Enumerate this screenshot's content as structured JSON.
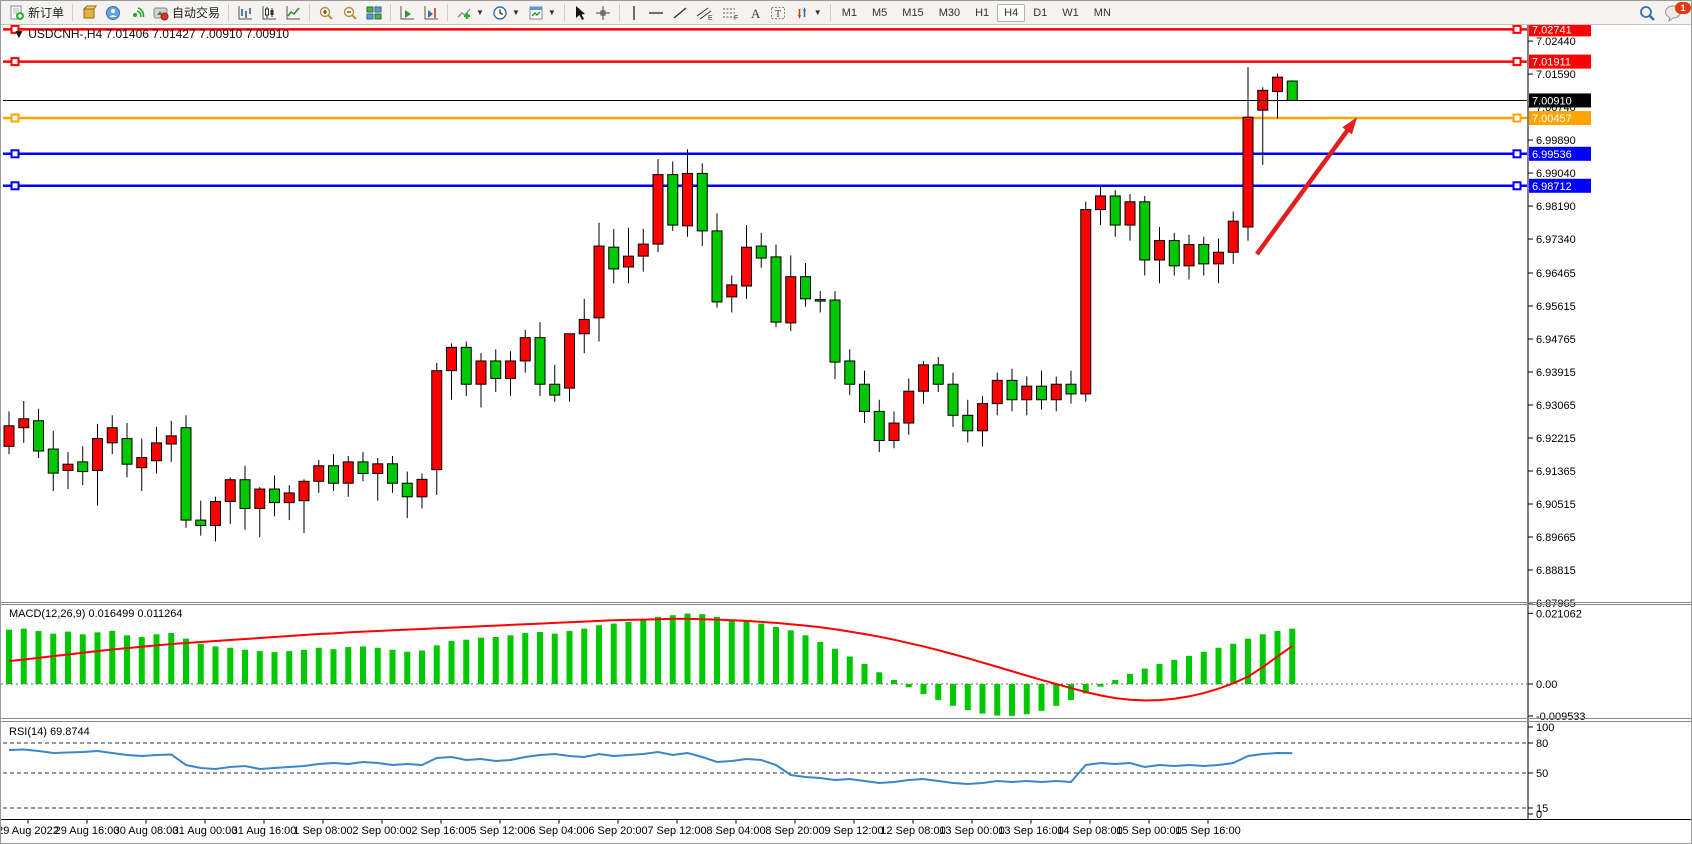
{
  "toolbar": {
    "new_order_label": "新订单",
    "autotrading_label": "自动交易",
    "timeframes": [
      "M1",
      "M5",
      "M15",
      "M30",
      "H1",
      "H4",
      "D1",
      "W1",
      "MN"
    ],
    "active_timeframe": "H4",
    "notification_count": "1"
  },
  "chart": {
    "title_marker": "▼",
    "symbol_period": "USDCNH-,H4",
    "ohlc_text": "7.01406 7.01427 7.00910 7.00910"
  },
  "chart_data": {
    "type": "candlestick",
    "symbol": "USDCNH-",
    "period": "H4",
    "current_bar": {
      "open": "7.01406",
      "high": "7.01427",
      "low": "7.00910",
      "close": "7.00910"
    },
    "colors": {
      "bull": "#FF0000",
      "bear": "#00C800",
      "wick": "#000000",
      "background": "#FFFFFF"
    },
    "candles": [
      [
        6.92,
        6.929,
        6.918,
        6.9253
      ],
      [
        6.9248,
        6.9317,
        6.9209,
        6.9271
      ],
      [
        6.9266,
        6.9297,
        6.917,
        6.9188
      ],
      [
        6.9193,
        6.924,
        6.9085,
        6.9131
      ],
      [
        6.9138,
        6.9185,
        6.909,
        6.9154
      ],
      [
        6.916,
        6.92,
        6.91,
        6.9135
      ],
      [
        6.9138,
        6.9258,
        6.9047,
        6.922
      ],
      [
        6.9209,
        6.928,
        6.918,
        6.9248
      ],
      [
        6.922,
        6.926,
        6.912,
        6.9154
      ],
      [
        6.9145,
        6.922,
        6.9085,
        6.9171
      ],
      [
        6.9163,
        6.925,
        6.913,
        6.9209
      ],
      [
        6.9206,
        6.9266,
        6.916,
        6.9227
      ],
      [
        6.9248,
        6.928,
        6.899,
        6.901
      ],
      [
        6.901,
        6.906,
        6.897,
        6.8996
      ],
      [
        6.8996,
        6.907,
        6.8955,
        6.9058
      ],
      [
        6.9058,
        6.912,
        6.9,
        6.9114
      ],
      [
        6.9114,
        6.915,
        6.8985,
        6.904
      ],
      [
        6.904,
        6.9095,
        6.8966,
        6.909
      ],
      [
        6.909,
        6.9125,
        6.902,
        6.9055
      ],
      [
        6.9055,
        6.91,
        6.901,
        6.908
      ],
      [
        6.906,
        6.9115,
        6.8976,
        6.911
      ],
      [
        6.911,
        6.9165,
        6.908,
        6.915
      ],
      [
        6.915,
        6.918,
        6.9085,
        6.9105
      ],
      [
        6.9105,
        6.9175,
        6.907,
        6.916
      ],
      [
        6.916,
        6.9185,
        6.911,
        6.913
      ],
      [
        6.913,
        6.917,
        6.906,
        6.9155
      ],
      [
        6.9155,
        6.9175,
        6.908,
        6.9105
      ],
      [
        6.9105,
        6.9135,
        6.9015,
        6.907
      ],
      [
        6.907,
        6.913,
        6.904,
        6.9115
      ],
      [
        6.914,
        6.9415,
        6.9075,
        6.9395
      ],
      [
        6.9395,
        6.9465,
        6.932,
        6.9455
      ],
      [
        6.9455,
        6.947,
        6.933,
        6.936
      ],
      [
        6.936,
        6.944,
        6.93,
        6.942
      ],
      [
        6.942,
        6.945,
        6.934,
        6.9375
      ],
      [
        6.9375,
        6.9445,
        6.933,
        6.942
      ],
      [
        6.942,
        6.95,
        6.939,
        6.948
      ],
      [
        6.948,
        6.952,
        6.933,
        6.936
      ],
      [
        6.936,
        6.941,
        6.9315,
        6.9332
      ],
      [
        6.935,
        6.949,
        6.9315,
        6.949
      ],
      [
        6.949,
        6.958,
        6.944,
        6.9527
      ],
      [
        6.9531,
        6.9776,
        6.947,
        6.9716
      ],
      [
        6.9713,
        6.976,
        6.962,
        6.9657
      ],
      [
        6.9662,
        6.9763,
        6.962,
        6.969
      ],
      [
        6.969,
        6.976,
        6.965,
        6.9721
      ],
      [
        6.9721,
        6.994,
        6.97,
        6.99
      ],
      [
        6.99,
        6.9934,
        6.9755,
        6.977
      ],
      [
        6.9768,
        6.9965,
        6.974,
        6.9903
      ],
      [
        6.9903,
        6.9929,
        6.9716,
        6.9755
      ],
      [
        6.9755,
        6.98,
        6.9557,
        6.9572
      ],
      [
        6.9585,
        6.964,
        6.9545,
        6.9616
      ],
      [
        6.9613,
        6.977,
        6.958,
        6.9713
      ],
      [
        6.9716,
        6.975,
        6.966,
        6.9685
      ],
      [
        6.9688,
        6.972,
        6.9507,
        6.952
      ],
      [
        6.9518,
        6.9692,
        6.9497,
        6.9637
      ],
      [
        6.9637,
        6.9672,
        6.956,
        6.958
      ],
      [
        6.9578,
        6.96,
        6.9545,
        6.9577
      ],
      [
        6.9577,
        6.96,
        6.9373,
        6.9417
      ],
      [
        6.942,
        6.945,
        6.9332,
        6.936
      ],
      [
        6.936,
        6.9395,
        6.926,
        6.929
      ],
      [
        6.929,
        6.932,
        6.9185,
        6.9215
      ],
      [
        6.9215,
        6.929,
        6.9195,
        6.926
      ],
      [
        6.926,
        6.9375,
        6.923,
        6.9342
      ],
      [
        6.9342,
        6.942,
        6.931,
        6.941
      ],
      [
        6.941,
        6.943,
        6.934,
        6.936
      ],
      [
        6.936,
        6.939,
        6.925,
        6.928
      ],
      [
        6.928,
        6.932,
        6.921,
        6.924
      ],
      [
        6.924,
        6.933,
        6.92,
        6.931
      ],
      [
        6.931,
        6.939,
        6.928,
        6.937
      ],
      [
        6.937,
        6.94,
        6.929,
        6.932
      ],
      [
        6.932,
        6.938,
        6.928,
        6.9355
      ],
      [
        6.9355,
        6.9395,
        6.9295,
        6.932
      ],
      [
        6.932,
        6.938,
        6.929,
        6.936
      ],
      [
        6.936,
        6.9395,
        6.931,
        6.9335
      ],
      [
        6.9335,
        6.983,
        6.9315,
        6.981
      ],
      [
        6.981,
        6.9868,
        6.977,
        6.9845
      ],
      [
        6.9845,
        6.986,
        6.974,
        6.977
      ],
      [
        6.977,
        6.985,
        6.973,
        6.983
      ],
      [
        6.983,
        6.9845,
        6.964,
        6.968
      ],
      [
        6.968,
        6.9765,
        6.962,
        6.973
      ],
      [
        6.973,
        6.975,
        6.964,
        6.9665
      ],
      [
        6.9665,
        6.9745,
        6.963,
        6.972
      ],
      [
        6.972,
        6.974,
        6.964,
        6.967
      ],
      [
        6.967,
        6.9735,
        6.962,
        6.97
      ],
      [
        6.97,
        6.9805,
        6.967,
        6.978
      ],
      [
        6.9765,
        7.0177,
        6.973,
        7.0048
      ],
      [
        7.0066,
        7.0125,
        6.9925,
        7.0117
      ],
      [
        7.0114,
        7.016,
        7.0045,
        7.0151
      ],
      [
        7.0141,
        7.0143,
        7.0091,
        7.0091
      ]
    ],
    "price_axis_ticks": [
      "7.02440",
      "7.01590",
      "7.00740",
      "6.99890",
      "6.99040",
      "6.98190",
      "6.97340",
      "6.96465",
      "6.95615",
      "6.94765",
      "6.93915",
      "6.93065",
      "6.92215",
      "6.91365",
      "6.90515",
      "6.89665",
      "6.88815",
      "6.87965"
    ],
    "horizontal_lines": [
      {
        "price": 7.02741,
        "label": "7.02741",
        "color": "#FF0000"
      },
      {
        "price": 7.01911,
        "label": "7.01911",
        "color": "#FF0000"
      },
      {
        "price": 7.00457,
        "label": "7.00457",
        "color": "#FFA500"
      },
      {
        "price": 6.99536,
        "label": "6.99536",
        "color": "#0000FF"
      },
      {
        "price": 6.98712,
        "label": "6.98712",
        "color": "#0000FF"
      }
    ],
    "current_price": {
      "value": 7.0091,
      "label": "7.00910",
      "badge_color": "#000000"
    },
    "indicators": {
      "macd": {
        "label": "MACD(12,26,9)",
        "main_value": "0.016499",
        "signal_value": "0.011264",
        "axis_labels": [
          {
            "text": "0.021062",
            "value": 0.021062
          },
          {
            "text": "0.00",
            "value": 0
          },
          {
            "text": "-0.009533",
            "value": -0.009533
          }
        ],
        "hist_color": "#00C800",
        "signal_color": "#FF0000",
        "histogram": [
          0.0162,
          0.0165,
          0.0158,
          0.015,
          0.0156,
          0.0148,
          0.0154,
          0.0158,
          0.0145,
          0.014,
          0.0148,
          0.0152,
          0.0135,
          0.012,
          0.0112,
          0.0108,
          0.0102,
          0.0098,
          0.0095,
          0.0098,
          0.0102,
          0.0108,
          0.0104,
          0.011,
          0.0112,
          0.0108,
          0.0102,
          0.0096,
          0.01,
          0.0115,
          0.0128,
          0.0132,
          0.0138,
          0.014,
          0.0145,
          0.0152,
          0.0155,
          0.015,
          0.0158,
          0.0165,
          0.0175,
          0.018,
          0.0185,
          0.0192,
          0.02,
          0.0205,
          0.021,
          0.0208,
          0.02,
          0.0192,
          0.0188,
          0.018,
          0.017,
          0.016,
          0.0145,
          0.0125,
          0.0105,
          0.0082,
          0.006,
          0.0035,
          0.0012,
          -0.001,
          -0.003,
          -0.0048,
          -0.0065,
          -0.0078,
          -0.0088,
          -0.0094,
          -0.0095,
          -0.009,
          -0.008,
          -0.0065,
          -0.0048,
          -0.0028,
          -0.0008,
          0.0012,
          0.003,
          0.0046,
          0.006,
          0.0072,
          0.0084,
          0.0096,
          0.0108,
          0.012,
          0.0135,
          0.0148,
          0.0158,
          0.0165
        ],
        "signal": [
          0.0068,
          0.0073,
          0.0078,
          0.0083,
          0.0088,
          0.0093,
          0.0098,
          0.0103,
          0.0107,
          0.0111,
          0.0115,
          0.0119,
          0.0122,
          0.0125,
          0.0128,
          0.0131,
          0.0134,
          0.0137,
          0.014,
          0.0143,
          0.0146,
          0.0149,
          0.0151,
          0.0154,
          0.0156,
          0.0158,
          0.016,
          0.0162,
          0.0164,
          0.0166,
          0.0168,
          0.017,
          0.0172,
          0.0174,
          0.0176,
          0.0178,
          0.018,
          0.0182,
          0.0184,
          0.0186,
          0.0188,
          0.019,
          0.0191,
          0.0192,
          0.0193,
          0.0194,
          0.0194,
          0.0193,
          0.0192,
          0.019,
          0.0188,
          0.0185,
          0.0182,
          0.0178,
          0.0174,
          0.0169,
          0.0163,
          0.0156,
          0.0149,
          0.0141,
          0.0132,
          0.0122,
          0.0112,
          0.0101,
          0.0089,
          0.0077,
          0.0064,
          0.0051,
          0.0038,
          0.0025,
          0.0012,
          0.0,
          -0.0012,
          -0.0024,
          -0.0034,
          -0.0042,
          -0.0047,
          -0.0049,
          -0.0048,
          -0.0044,
          -0.0037,
          -0.0027,
          -0.0014,
          0.0002,
          0.0022,
          0.005,
          0.0082,
          0.0113
        ]
      },
      "rsi": {
        "label": "RSI(14)",
        "value": "69.8744",
        "line_color": "#3A87C8",
        "levels": [
          80,
          50,
          15
        ],
        "axis_labels": [
          {
            "text": "100",
            "value": 100
          },
          {
            "text": "80",
            "value": 80
          },
          {
            "text": "50",
            "value": 50
          },
          {
            "text": "15",
            "value": 15
          },
          {
            "text": "0",
            "value": 0
          }
        ],
        "series": [
          73,
          73.5,
          72,
          70,
          70.5,
          71,
          72,
          70,
          68,
          67,
          68,
          68.5,
          58,
          55,
          54,
          56,
          57,
          54,
          55,
          56,
          57,
          59,
          60,
          59,
          61,
          60,
          58,
          59,
          58,
          65,
          66,
          63,
          64,
          62,
          63,
          66,
          68,
          69,
          67,
          66,
          69,
          67,
          68,
          69,
          71,
          68,
          70,
          66,
          61,
          62,
          64,
          63,
          58,
          48,
          46,
          45,
          43,
          44,
          42,
          40,
          41,
          43,
          44,
          42,
          40,
          39,
          40,
          42,
          41,
          42,
          41,
          42,
          41,
          58,
          60,
          59,
          60,
          56,
          58,
          57,
          58,
          57,
          58,
          60,
          67,
          69,
          70,
          69.87
        ]
      }
    },
    "time_axis": [
      "29 Aug 2022",
      "29 Aug 16:00",
      "30 Aug 08:00",
      "31 Aug 00:00",
      "31 Aug 16:00",
      "1 Sep 08:00",
      "2 Sep 00:00",
      "2 Sep 16:00",
      "5 Sep 12:00",
      "6 Sep 04:00",
      "6 Sep 20:00",
      "7 Sep 12:00",
      "8 Sep 04:00",
      "8 Sep 20:00",
      "9 Sep 12:00",
      "12 Sep 08:00",
      "13 Sep 00:00",
      "13 Sep 16:00",
      "14 Sep 08:00",
      "15 Sep 00:00",
      "15 Sep 16:00"
    ],
    "annotations": {
      "arrow": {
        "from_bar": 84.6,
        "from_price": 6.9695,
        "to_bar": 91.4,
        "to_price": 7.0048,
        "color": "#E02020"
      }
    }
  }
}
